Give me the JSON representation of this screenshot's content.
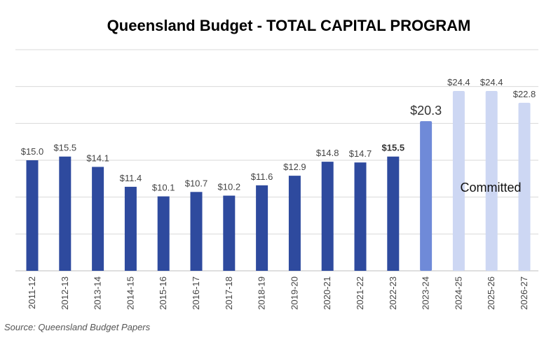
{
  "chart_data": {
    "type": "bar",
    "title": "Queensland Budget - TOTAL CAPITAL PROGRAM",
    "categories": [
      "2011-12",
      "2012-13",
      "2013-14",
      "2014-15",
      "2015-16",
      "2016-17",
      "2017-18",
      "2018-19",
      "2019-20",
      "2020-21",
      "2021-22",
      "2022-23",
      "2023-24",
      "2024-25",
      "2025-26",
      "2026-27"
    ],
    "values": [
      15.0,
      15.5,
      14.1,
      11.4,
      10.1,
      10.7,
      10.2,
      11.6,
      12.9,
      14.8,
      14.7,
      15.5,
      20.3,
      24.4,
      24.4,
      22.8
    ],
    "value_labels": [
      "$15.0",
      "$15.5",
      "$14.1",
      "$11.4",
      "$10.1",
      "$10.7",
      "$10.2",
      "$11.6",
      "$12.9",
      "$14.8",
      "$14.7",
      "$15.5",
      "$20.3",
      "$24.4",
      "$24.4",
      "$22.8"
    ],
    "bar_colors": [
      "#2e4a9e",
      "#2e4a9e",
      "#2e4a9e",
      "#2e4a9e",
      "#2e4a9e",
      "#2e4a9e",
      "#2e4a9e",
      "#2e4a9e",
      "#2e4a9e",
      "#2e4a9e",
      "#2e4a9e",
      "#2e4a9e",
      "#6f8ad8",
      "#cdd7f3",
      "#cdd7f3",
      "#cdd7f3"
    ],
    "ylim": [
      0,
      30
    ],
    "grid": true,
    "annotation": "Committed",
    "source": "Source: Queensland Budget Papers"
  }
}
